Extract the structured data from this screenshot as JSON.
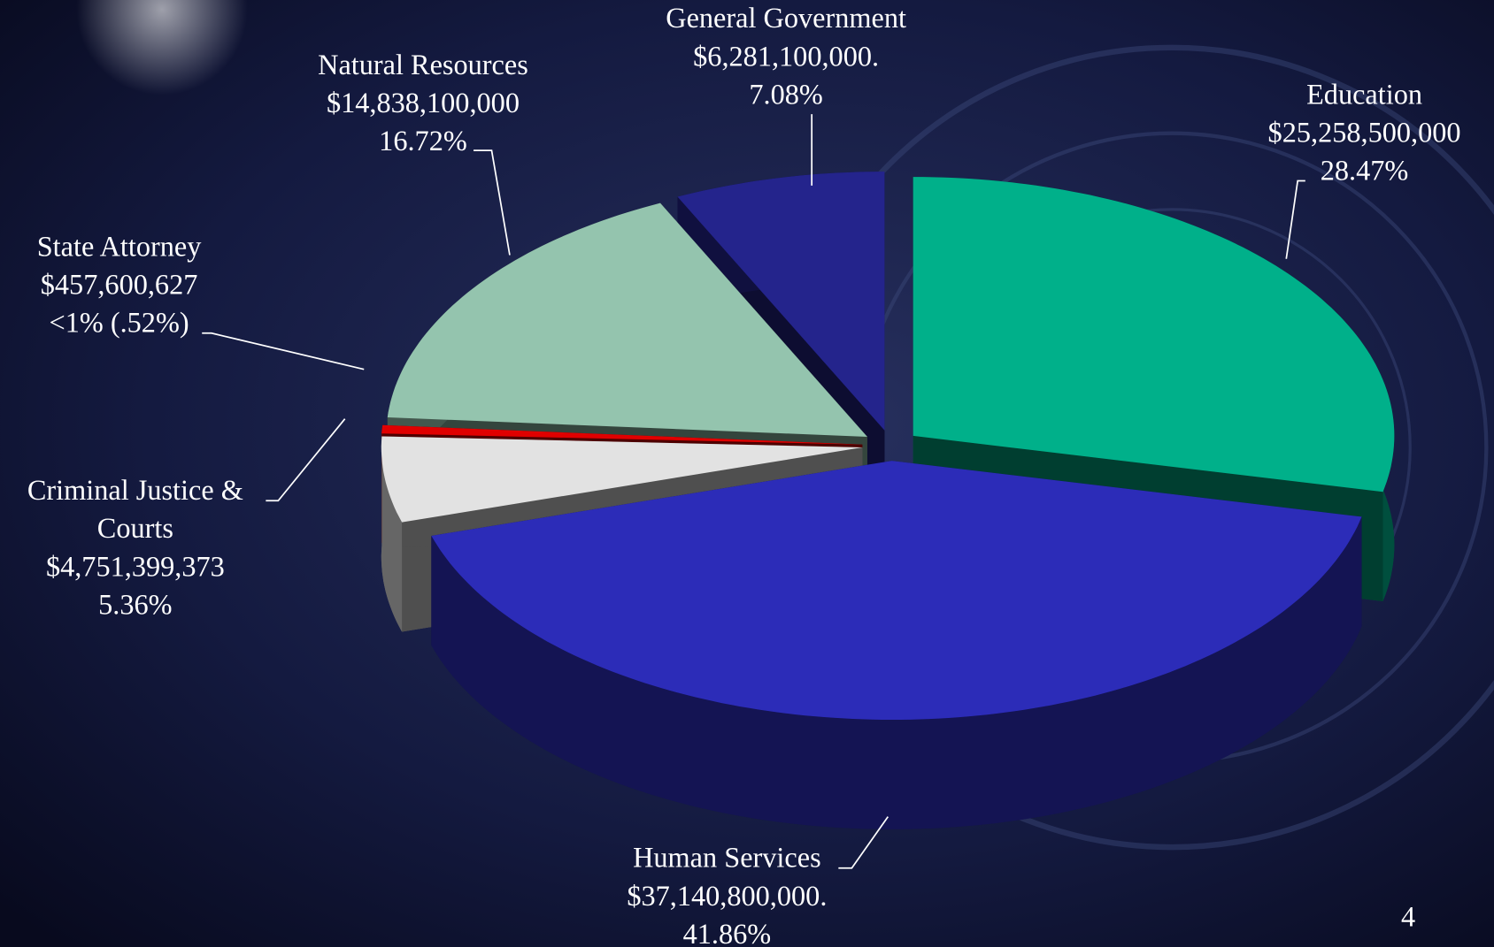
{
  "chart_data": {
    "type": "pie",
    "categories": [
      "Education",
      "Human Services",
      "Criminal Justice & Courts",
      "State Attorney",
      "Natural Resources",
      "General Government"
    ],
    "values": [
      25258500000,
      37140800000,
      4751399373,
      457600627,
      14838100000,
      6281100000
    ],
    "value_labels": [
      "$25,258,500,000",
      "$37,140,800,000.",
      "$4,751,399,373",
      "$457,600,627",
      "$14,838,100,000",
      "$6,281,100,000."
    ],
    "percent_labels": [
      "28.47%",
      "41.86%",
      "5.36%",
      "<1% (.52%)",
      "16.72%",
      "7.08%"
    ],
    "colors": [
      "#00b08a",
      "#2c2cb8",
      "#e2e2e2",
      "#e00000",
      "#94c4ae",
      "#24248c"
    ]
  },
  "slide_number": "4"
}
